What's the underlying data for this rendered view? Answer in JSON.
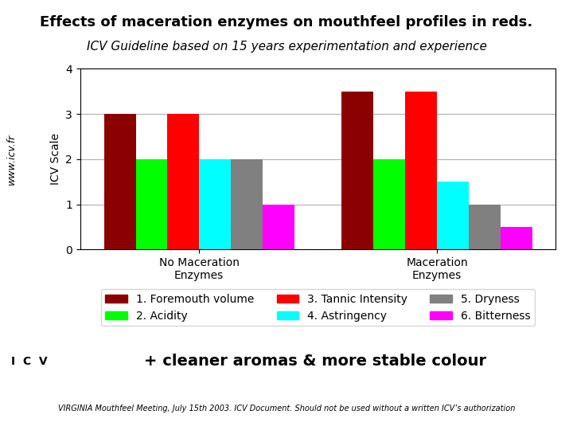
{
  "chart_data": {
    "type": "bar",
    "title": "Effects of maceration enzymes on mouthfeel profiles in reds.",
    "subtitle": "ICV Guideline based on 15 years experimentation and experience",
    "y_label": "ICV Scale",
    "categories": [
      "No Maceration\nEnzymes",
      "Maceration\nEnzymes"
    ],
    "series": [
      {
        "name": "1. Foremouth volume",
        "color": "#8B0000",
        "values": [
          3.0,
          3.5
        ]
      },
      {
        "name": "2. Acidity",
        "color": "#00FF00",
        "values": [
          2.0,
          2.0
        ]
      },
      {
        "name": "3. Tannic Intensity",
        "color": "#FF0000",
        "values": [
          3.0,
          3.5
        ]
      },
      {
        "name": "4. Astringency",
        "color": "#00FFFF",
        "values": [
          2.0,
          1.5
        ]
      },
      {
        "name": "5. Dryness",
        "color": "#808080",
        "values": [
          2.0,
          1.0
        ]
      },
      {
        "name": "6. Bitterness",
        "color": "#FF00FF",
        "values": [
          1.0,
          0.5
        ]
      }
    ],
    "ylim": [
      0,
      4
    ],
    "yticks": [
      0,
      1,
      2,
      3,
      4
    ],
    "grid": true,
    "legend": "upper center",
    "annotations": [
      "+ cleaner aromas & more stable colour",
      "www.icv.fr",
      "I  C  V",
      "VIRGINIA Mouthfeel Meeting, July 15th 2003. ICV Document. Should not be used without a written ICV’s authorization"
    ]
  }
}
